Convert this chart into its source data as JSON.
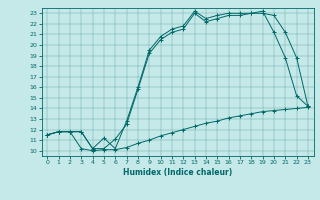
{
  "xlabel": "Humidex (Indice chaleur)",
  "xlim": [
    -0.5,
    23.5
  ],
  "ylim": [
    9.5,
    23.5
  ],
  "xticks": [
    0,
    1,
    2,
    3,
    4,
    5,
    6,
    7,
    8,
    9,
    10,
    11,
    12,
    13,
    14,
    15,
    16,
    17,
    18,
    19,
    20,
    21,
    22,
    23
  ],
  "yticks": [
    10,
    11,
    12,
    13,
    14,
    15,
    16,
    17,
    18,
    19,
    20,
    21,
    22,
    23
  ],
  "bg_color": "#c5e8e8",
  "line_color": "#006868",
  "line1_x": [
    0,
    1,
    2,
    3,
    4,
    5,
    6,
    7,
    8,
    9,
    10,
    11,
    12,
    13,
    14,
    15,
    16,
    17,
    18,
    19,
    20,
    21,
    22,
    23
  ],
  "line1_y": [
    11.5,
    11.8,
    11.8,
    10.2,
    10.0,
    10.1,
    10.1,
    10.3,
    10.7,
    11.0,
    11.4,
    11.7,
    12.0,
    12.3,
    12.6,
    12.8,
    13.1,
    13.3,
    13.5,
    13.7,
    13.8,
    13.9,
    14.0,
    14.1
  ],
  "line2_x": [
    0,
    1,
    2,
    3,
    4,
    5,
    6,
    7,
    8,
    9,
    10,
    11,
    12,
    13,
    14,
    15,
    16,
    17,
    18,
    19,
    20,
    21,
    22,
    23
  ],
  "line2_y": [
    11.5,
    11.8,
    11.8,
    11.8,
    10.2,
    10.2,
    11.1,
    12.5,
    15.8,
    19.2,
    20.5,
    21.2,
    21.5,
    23.0,
    22.2,
    22.5,
    22.8,
    22.8,
    23.0,
    23.0,
    22.8,
    21.2,
    18.8,
    14.2
  ],
  "line3_x": [
    0,
    1,
    2,
    3,
    4,
    5,
    6,
    7,
    8,
    9,
    10,
    11,
    12,
    13,
    14,
    15,
    16,
    17,
    18,
    19,
    20,
    21,
    22,
    23
  ],
  "line3_y": [
    11.5,
    11.8,
    11.8,
    11.8,
    10.2,
    11.2,
    10.2,
    12.8,
    16.0,
    19.5,
    20.8,
    21.5,
    21.8,
    23.2,
    22.5,
    22.8,
    23.0,
    23.0,
    23.0,
    23.2,
    21.2,
    18.8,
    15.2,
    14.2
  ],
  "figsize": [
    3.2,
    2.0
  ],
  "dpi": 100
}
